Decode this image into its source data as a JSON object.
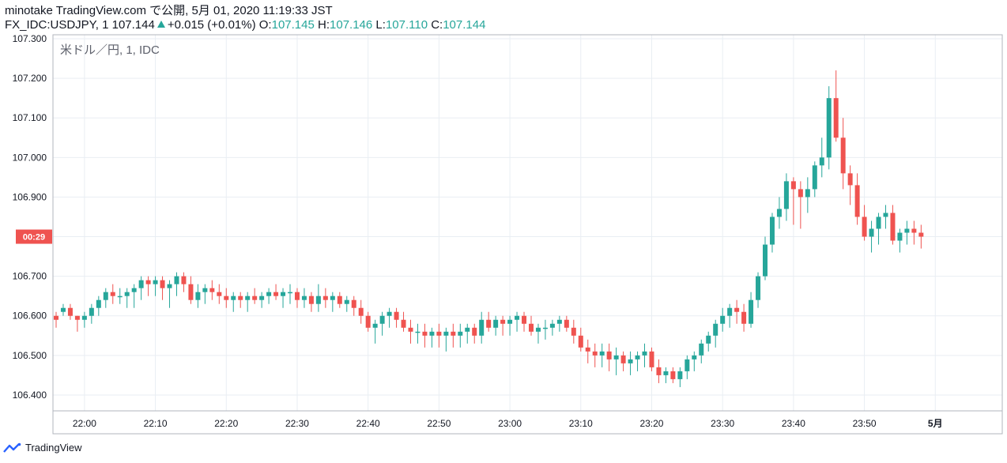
{
  "header": {
    "publish_line": "minotake TradingView.com で公開, 5月 01, 2020 11:19:33 JST",
    "symbol": "FX_IDC:USDJPY, 1",
    "last": "107.144",
    "change": "+0.015 (+0.01%)",
    "o_label": "O:",
    "o_val": "107.145",
    "h_label": "H:",
    "h_val": "107.146",
    "l_label": "L:",
    "l_val": "107.110",
    "c_label": "C:",
    "c_val": "107.144"
  },
  "footer": {
    "brand": "TradingView"
  },
  "colors": {
    "up": "#26a69a",
    "down": "#ef5350",
    "grid": "#e9eef3",
    "axis": "#787b86",
    "badge": "#ef5350"
  },
  "chart_data": {
    "type": "candlestick",
    "watermark": "米ドル／円, 1, IDC",
    "price_badge": "00:29",
    "price_badge_value": 106.8,
    "y_ticks": [
      "107.300",
      "107.200",
      "107.100",
      "107.000",
      "106.900",
      "106.700",
      "106.600",
      "106.500",
      "106.400"
    ],
    "x_ticks": [
      {
        "label": "22:00",
        "index": 4
      },
      {
        "label": "22:10",
        "index": 14
      },
      {
        "label": "22:20",
        "index": 24
      },
      {
        "label": "22:30",
        "index": 34
      },
      {
        "label": "22:40",
        "index": 44
      },
      {
        "label": "22:50",
        "index": 54
      },
      {
        "label": "23:00",
        "index": 64
      },
      {
        "label": "23:10",
        "index": 74
      },
      {
        "label": "23:20",
        "index": 84
      },
      {
        "label": "23:30",
        "index": 94
      },
      {
        "label": "23:40",
        "index": 104
      },
      {
        "label": "23:50",
        "index": 114
      },
      {
        "label": "5月",
        "index": 124
      }
    ],
    "ylim": [
      106.36,
      107.31
    ],
    "candles": [
      [
        106.6,
        106.61,
        106.57,
        106.59
      ],
      [
        106.61,
        106.63,
        106.6,
        106.62
      ],
      [
        106.62,
        106.63,
        106.59,
        106.6
      ],
      [
        106.6,
        106.6,
        106.56,
        106.59
      ],
      [
        106.59,
        106.61,
        106.57,
        106.6
      ],
      [
        106.6,
        106.63,
        106.58,
        106.62
      ],
      [
        106.62,
        106.65,
        106.6,
        106.64
      ],
      [
        106.64,
        106.67,
        106.62,
        106.66
      ],
      [
        106.66,
        106.68,
        106.63,
        106.65
      ],
      [
        106.65,
        106.67,
        106.63,
        106.65
      ],
      [
        106.65,
        106.67,
        106.62,
        106.66
      ],
      [
        106.66,
        106.68,
        106.62,
        106.67
      ],
      [
        106.67,
        106.7,
        106.64,
        106.69
      ],
      [
        106.69,
        106.7,
        106.65,
        106.68
      ],
      [
        106.68,
        106.7,
        106.65,
        106.69
      ],
      [
        106.69,
        106.7,
        106.64,
        106.67
      ],
      [
        106.67,
        106.69,
        106.62,
        106.68
      ],
      [
        106.68,
        106.71,
        106.65,
        106.7
      ],
      [
        106.7,
        106.71,
        106.66,
        106.68
      ],
      [
        106.68,
        106.7,
        106.63,
        106.64
      ],
      [
        106.64,
        106.68,
        106.62,
        106.66
      ],
      [
        106.66,
        106.68,
        106.63,
        106.67
      ],
      [
        106.67,
        106.69,
        106.64,
        106.66
      ],
      [
        106.66,
        106.68,
        106.63,
        106.65
      ],
      [
        106.65,
        106.67,
        106.62,
        106.64
      ],
      [
        106.64,
        106.66,
        106.61,
        106.65
      ],
      [
        106.65,
        106.66,
        106.62,
        106.64
      ],
      [
        106.64,
        106.66,
        106.61,
        106.65
      ],
      [
        106.65,
        106.67,
        106.63,
        106.64
      ],
      [
        106.64,
        106.66,
        106.62,
        106.65
      ],
      [
        106.65,
        106.67,
        106.63,
        106.66
      ],
      [
        106.66,
        106.68,
        106.64,
        106.65
      ],
      [
        106.65,
        106.67,
        106.62,
        106.66
      ],
      [
        106.66,
        106.68,
        106.63,
        106.66
      ],
      [
        106.66,
        106.67,
        106.62,
        106.64
      ],
      [
        106.64,
        106.67,
        106.62,
        106.65
      ],
      [
        106.65,
        106.66,
        106.61,
        106.63
      ],
      [
        106.63,
        106.68,
        106.61,
        106.65
      ],
      [
        106.65,
        106.67,
        106.62,
        106.64
      ],
      [
        106.64,
        106.66,
        106.61,
        106.65
      ],
      [
        106.65,
        106.66,
        106.62,
        106.63
      ],
      [
        106.63,
        106.65,
        106.61,
        106.64
      ],
      [
        106.64,
        106.65,
        106.6,
        106.62
      ],
      [
        106.62,
        106.64,
        106.58,
        106.6
      ],
      [
        106.6,
        106.61,
        106.56,
        106.57
      ],
      [
        106.57,
        106.59,
        106.53,
        106.58
      ],
      [
        106.58,
        106.61,
        106.55,
        106.6
      ],
      [
        106.6,
        106.62,
        106.57,
        106.61
      ],
      [
        106.61,
        106.62,
        106.57,
        106.59
      ],
      [
        106.59,
        106.61,
        106.56,
        106.57
      ],
      [
        106.57,
        106.59,
        106.53,
        106.56
      ],
      [
        106.56,
        106.58,
        106.53,
        106.56
      ],
      [
        106.56,
        106.58,
        106.52,
        106.55
      ],
      [
        106.55,
        106.57,
        106.52,
        106.56
      ],
      [
        106.56,
        106.58,
        106.52,
        106.55
      ],
      [
        106.55,
        106.57,
        106.51,
        106.56
      ],
      [
        106.56,
        106.58,
        106.52,
        106.55
      ],
      [
        106.55,
        106.58,
        106.52,
        106.56
      ],
      [
        106.56,
        106.58,
        106.53,
        106.57
      ],
      [
        106.57,
        106.58,
        106.53,
        106.55
      ],
      [
        106.55,
        106.61,
        106.53,
        106.59
      ],
      [
        106.59,
        106.61,
        106.56,
        106.57
      ],
      [
        106.57,
        106.6,
        106.55,
        106.59
      ],
      [
        106.59,
        106.6,
        106.55,
        106.58
      ],
      [
        106.58,
        106.6,
        106.55,
        106.59
      ],
      [
        106.59,
        106.61,
        106.56,
        106.6
      ],
      [
        106.6,
        106.61,
        106.56,
        106.58
      ],
      [
        106.58,
        106.6,
        106.55,
        106.56
      ],
      [
        106.56,
        106.58,
        106.53,
        106.57
      ],
      [
        106.57,
        106.59,
        106.54,
        106.57
      ],
      [
        106.57,
        106.59,
        106.55,
        106.58
      ],
      [
        106.58,
        106.6,
        106.56,
        106.59
      ],
      [
        106.59,
        106.6,
        106.56,
        106.57
      ],
      [
        106.57,
        106.59,
        106.53,
        106.55
      ],
      [
        106.55,
        106.57,
        106.51,
        106.52
      ],
      [
        106.52,
        106.54,
        106.48,
        106.51
      ],
      [
        106.51,
        106.53,
        106.47,
        106.5
      ],
      [
        106.5,
        106.53,
        106.47,
        106.51
      ],
      [
        106.51,
        106.53,
        106.46,
        106.49
      ],
      [
        106.49,
        106.52,
        106.45,
        106.5
      ],
      [
        106.5,
        106.51,
        106.46,
        106.48
      ],
      [
        106.48,
        106.51,
        106.45,
        106.49
      ],
      [
        106.49,
        106.51,
        106.46,
        106.5
      ],
      [
        106.5,
        106.53,
        106.47,
        106.51
      ],
      [
        106.51,
        106.52,
        106.46,
        106.47
      ],
      [
        106.47,
        106.49,
        106.43,
        106.45
      ],
      [
        106.45,
        106.47,
        106.43,
        106.46
      ],
      [
        106.46,
        106.47,
        106.43,
        106.44
      ],
      [
        106.44,
        106.47,
        106.42,
        106.46
      ],
      [
        106.46,
        106.5,
        106.44,
        106.49
      ],
      [
        106.49,
        106.51,
        106.46,
        106.5
      ],
      [
        106.5,
        106.54,
        106.48,
        106.53
      ],
      [
        106.53,
        106.56,
        106.51,
        106.55
      ],
      [
        106.55,
        106.59,
        106.52,
        106.58
      ],
      [
        106.58,
        106.62,
        106.56,
        106.6
      ],
      [
        106.6,
        106.63,
        106.57,
        106.62
      ],
      [
        106.62,
        106.64,
        106.58,
        106.61
      ],
      [
        106.61,
        106.63,
        106.56,
        106.58
      ],
      [
        106.58,
        106.66,
        106.57,
        106.64
      ],
      [
        106.64,
        106.71,
        106.62,
        106.7
      ],
      [
        106.7,
        106.8,
        106.69,
        106.78
      ],
      [
        106.78,
        106.86,
        106.76,
        106.85
      ],
      [
        106.85,
        106.9,
        106.82,
        106.87
      ],
      [
        106.87,
        106.96,
        106.84,
        106.94
      ],
      [
        106.94,
        106.95,
        106.83,
        106.92
      ],
      [
        106.92,
        106.94,
        106.82,
        106.9
      ],
      [
        106.9,
        106.95,
        106.86,
        106.92
      ],
      [
        106.92,
        106.99,
        106.9,
        106.98
      ],
      [
        106.98,
        107.05,
        106.95,
        107.0
      ],
      [
        107.0,
        107.18,
        106.97,
        107.15
      ],
      [
        107.15,
        107.22,
        107.04,
        107.05
      ],
      [
        107.05,
        107.1,
        106.92,
        106.96
      ],
      [
        106.96,
        106.98,
        106.88,
        106.93
      ],
      [
        106.93,
        106.96,
        106.83,
        106.85
      ],
      [
        106.85,
        106.88,
        106.79,
        106.8
      ],
      [
        106.8,
        106.84,
        106.76,
        106.82
      ],
      [
        106.82,
        106.86,
        106.78,
        106.85
      ],
      [
        106.85,
        106.88,
        106.82,
        106.86
      ],
      [
        106.86,
        106.88,
        106.78,
        106.79
      ],
      [
        106.79,
        106.82,
        106.76,
        106.81
      ],
      [
        106.81,
        106.84,
        106.78,
        106.82
      ],
      [
        106.82,
        106.84,
        106.78,
        106.81
      ],
      [
        106.81,
        106.83,
        106.77,
        106.8
      ]
    ]
  }
}
